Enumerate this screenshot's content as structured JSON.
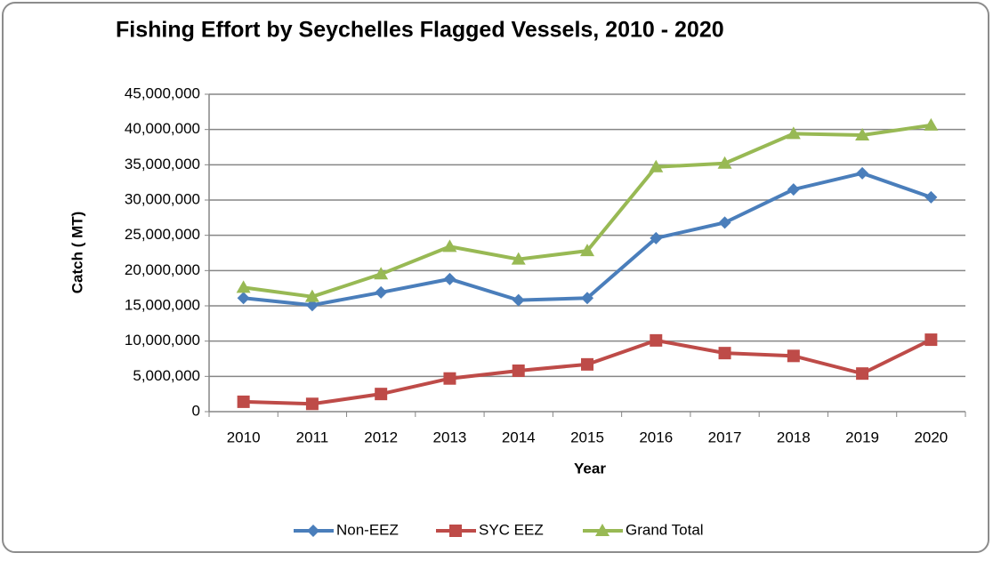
{
  "chart_data": {
    "type": "line",
    "title": "Fishing Effort by Seychelles Flagged Vessels, 2010 - 2020",
    "x_label": "Year",
    "y_label": "Catch ( MT)",
    "categories": [
      "2010",
      "2011",
      "2012",
      "2013",
      "2014",
      "2015",
      "2016",
      "2017",
      "2018",
      "2019",
      "2020"
    ],
    "series": [
      {
        "name": "Non-EEZ",
        "color": "#4a7ebb",
        "marker": "diamond",
        "values": [
          16100000,
          15100000,
          16900000,
          18800000,
          15800000,
          16100000,
          24600000,
          26800000,
          31500000,
          33800000,
          30400000
        ]
      },
      {
        "name": "SYC EEZ",
        "color": "#be4b48",
        "marker": "square",
        "values": [
          1400000,
          1100000,
          2500000,
          4700000,
          5800000,
          6700000,
          10100000,
          8300000,
          7900000,
          5400000,
          10200000
        ]
      },
      {
        "name": "Grand Total",
        "color": "#98b954",
        "marker": "triangle",
        "values": [
          17600000,
          16300000,
          19500000,
          23400000,
          21600000,
          22800000,
          34700000,
          35200000,
          39400000,
          39200000,
          40600000
        ]
      }
    ],
    "ylim": [
      0,
      45000000
    ],
    "yticks": [
      0,
      {
        "value": 5000000,
        "label": "5,000,000"
      },
      {
        "value": 10000000,
        "label": "10,000,000"
      },
      {
        "value": 15000000,
        "label": "15,000,000"
      },
      {
        "value": 20000000,
        "label": "20,000,000"
      },
      {
        "value": 25000000,
        "label": "25,000,000"
      },
      {
        "value": 30000000,
        "label": "30,000,000"
      },
      {
        "value": 35000000,
        "label": "35,000,000"
      },
      {
        "value": 40000000,
        "label": "40,000,000"
      },
      {
        "value": 45000000,
        "label": "45,000,000"
      }
    ],
    "grid": true,
    "legend": "bottom"
  }
}
